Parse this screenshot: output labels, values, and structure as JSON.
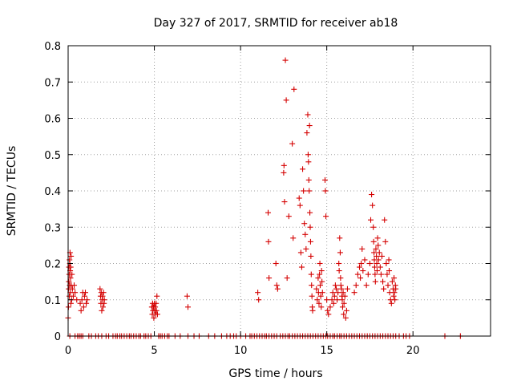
{
  "chart_data": {
    "type": "scatter",
    "title": "Day 327 of 2017, SRMTID for receiver ab18",
    "xlabel": "GPS time / hours",
    "ylabel": "SRMTID / TECUs",
    "xlim": [
      0,
      24.5
    ],
    "ylim": [
      0,
      0.8
    ],
    "xticks": [
      0,
      5,
      10,
      15,
      20
    ],
    "yticks": [
      0,
      0.1,
      0.2,
      0.3,
      0.4,
      0.5,
      0.6,
      0.7,
      0.8
    ],
    "grid": true,
    "marker": "+",
    "color": "#d40000",
    "series": [
      {
        "name": "SRMTID",
        "points": [
          [
            0.0,
            0.05
          ],
          [
            0.02,
            0.08
          ],
          [
            0.03,
            0.13
          ],
          [
            0.04,
            0.15
          ],
          [
            0.05,
            0.19
          ],
          [
            0.06,
            0.17
          ],
          [
            0.07,
            0.11
          ],
          [
            0.08,
            0.21
          ],
          [
            0.09,
            0.14
          ],
          [
            0.1,
            0.2
          ],
          [
            0.11,
            0.23
          ],
          [
            0.12,
            0.18
          ],
          [
            0.13,
            0.12
          ],
          [
            0.14,
            0.16
          ],
          [
            0.15,
            0.19
          ],
          [
            0.16,
            0.09
          ],
          [
            0.17,
            0.22
          ],
          [
            0.18,
            0.14
          ],
          [
            0.2,
            0.1
          ],
          [
            0.22,
            0.17
          ],
          [
            0.25,
            0.13
          ],
          [
            0.3,
            0.11
          ],
          [
            0.35,
            0.14
          ],
          [
            0.4,
            0.12
          ],
          [
            0.5,
            0.1
          ],
          [
            0.7,
            0.09
          ],
          [
            0.75,
            0.07
          ],
          [
            0.8,
            0.1
          ],
          [
            0.85,
            0.12
          ],
          [
            0.9,
            0.08
          ],
          [
            0.95,
            0.11
          ],
          [
            1.0,
            0.12
          ],
          [
            1.05,
            0.09
          ],
          [
            1.1,
            0.1
          ],
          [
            1.85,
            0.13
          ],
          [
            1.88,
            0.11
          ],
          [
            1.9,
            0.09
          ],
          [
            1.92,
            0.12
          ],
          [
            1.95,
            0.07
          ],
          [
            1.97,
            0.1
          ],
          [
            2.0,
            0.11
          ],
          [
            2.02,
            0.08
          ],
          [
            2.05,
            0.12
          ],
          [
            2.08,
            0.09
          ],
          [
            2.1,
            0.1
          ],
          [
            4.85,
            0.08
          ],
          [
            4.88,
            0.06
          ],
          [
            4.9,
            0.09
          ],
          [
            4.92,
            0.07
          ],
          [
            4.95,
            0.08
          ],
          [
            4.97,
            0.05
          ],
          [
            5.0,
            0.09
          ],
          [
            5.02,
            0.07
          ],
          [
            5.05,
            0.08
          ],
          [
            5.07,
            0.06
          ],
          [
            5.1,
            0.09
          ],
          [
            5.12,
            0.07
          ],
          [
            5.15,
            0.11
          ],
          [
            5.18,
            0.06
          ],
          [
            6.9,
            0.11
          ],
          [
            6.95,
            0.08
          ],
          [
            11.0,
            0.12
          ],
          [
            11.05,
            0.1
          ],
          [
            11.6,
            0.34
          ],
          [
            11.62,
            0.26
          ],
          [
            11.65,
            0.16
          ],
          [
            12.05,
            0.2
          ],
          [
            12.1,
            0.14
          ],
          [
            12.15,
            0.13
          ],
          [
            12.5,
            0.45
          ],
          [
            12.52,
            0.47
          ],
          [
            12.55,
            0.37
          ],
          [
            12.6,
            0.76
          ],
          [
            12.65,
            0.65
          ],
          [
            12.7,
            0.16
          ],
          [
            12.8,
            0.33
          ],
          [
            13.0,
            0.53
          ],
          [
            13.05,
            0.27
          ],
          [
            13.1,
            0.68
          ],
          [
            13.4,
            0.38
          ],
          [
            13.45,
            0.36
          ],
          [
            13.5,
            0.23
          ],
          [
            13.55,
            0.19
          ],
          [
            13.6,
            0.46
          ],
          [
            13.65,
            0.4
          ],
          [
            13.7,
            0.31
          ],
          [
            13.75,
            0.28
          ],
          [
            13.8,
            0.24
          ],
          [
            13.85,
            0.56
          ],
          [
            13.9,
            0.61
          ],
          [
            13.92,
            0.5
          ],
          [
            13.94,
            0.48
          ],
          [
            13.96,
            0.43
          ],
          [
            13.98,
            0.4
          ],
          [
            14.0,
            0.58
          ],
          [
            14.02,
            0.34
          ],
          [
            14.04,
            0.3
          ],
          [
            14.06,
            0.26
          ],
          [
            14.08,
            0.22
          ],
          [
            14.1,
            0.17
          ],
          [
            14.12,
            0.14
          ],
          [
            14.14,
            0.11
          ],
          [
            14.16,
            0.08
          ],
          [
            14.18,
            0.07
          ],
          [
            14.4,
            0.13
          ],
          [
            14.45,
            0.1
          ],
          [
            14.5,
            0.16
          ],
          [
            14.52,
            0.12
          ],
          [
            14.55,
            0.09
          ],
          [
            14.58,
            0.17
          ],
          [
            14.6,
            0.2
          ],
          [
            14.62,
            0.14
          ],
          [
            14.65,
            0.11
          ],
          [
            14.68,
            0.08
          ],
          [
            14.7,
            0.18
          ],
          [
            14.72,
            0.15
          ],
          [
            14.75,
            0.12
          ],
          [
            14.9,
            0.43
          ],
          [
            14.92,
            0.4
          ],
          [
            14.95,
            0.33
          ],
          [
            15.0,
            0.1
          ],
          [
            15.05,
            0.07
          ],
          [
            15.1,
            0.06
          ],
          [
            15.2,
            0.08
          ],
          [
            15.3,
            0.1
          ],
          [
            15.35,
            0.12
          ],
          [
            15.4,
            0.09
          ],
          [
            15.45,
            0.11
          ],
          [
            15.5,
            0.14
          ],
          [
            15.55,
            0.13
          ],
          [
            15.6,
            0.1
          ],
          [
            15.65,
            0.12
          ],
          [
            15.7,
            0.2
          ],
          [
            15.72,
            0.18
          ],
          [
            15.75,
            0.27
          ],
          [
            15.78,
            0.23
          ],
          [
            15.8,
            0.16
          ],
          [
            15.82,
            0.14
          ],
          [
            15.85,
            0.13
          ],
          [
            15.88,
            0.11
          ],
          [
            15.9,
            0.1
          ],
          [
            15.92,
            0.08
          ],
          [
            15.95,
            0.12
          ],
          [
            15.98,
            0.06
          ],
          [
            16.0,
            0.09
          ],
          [
            16.05,
            0.11
          ],
          [
            16.1,
            0.05
          ],
          [
            16.15,
            0.07
          ],
          [
            16.2,
            0.13
          ],
          [
            16.6,
            0.12
          ],
          [
            16.7,
            0.14
          ],
          [
            16.8,
            0.17
          ],
          [
            16.9,
            0.19
          ],
          [
            16.95,
            0.16
          ],
          [
            17.0,
            0.2
          ],
          [
            17.05,
            0.24
          ],
          [
            17.1,
            0.18
          ],
          [
            17.2,
            0.21
          ],
          [
            17.3,
            0.14
          ],
          [
            17.4,
            0.17
          ],
          [
            17.5,
            0.2
          ],
          [
            17.55,
            0.32
          ],
          [
            17.6,
            0.39
          ],
          [
            17.65,
            0.36
          ],
          [
            17.7,
            0.3
          ],
          [
            17.72,
            0.26
          ],
          [
            17.74,
            0.23
          ],
          [
            17.76,
            0.21
          ],
          [
            17.78,
            0.19
          ],
          [
            17.8,
            0.17
          ],
          [
            17.82,
            0.15
          ],
          [
            17.85,
            0.24
          ],
          [
            17.88,
            0.22
          ],
          [
            17.9,
            0.2
          ],
          [
            17.92,
            0.18
          ],
          [
            17.95,
            0.27
          ],
          [
            17.98,
            0.25
          ],
          [
            18.0,
            0.21
          ],
          [
            18.05,
            0.23
          ],
          [
            18.1,
            0.19
          ],
          [
            18.15,
            0.17
          ],
          [
            18.2,
            0.22
          ],
          [
            18.25,
            0.15
          ],
          [
            18.3,
            0.13
          ],
          [
            18.35,
            0.32
          ],
          [
            18.4,
            0.26
          ],
          [
            18.45,
            0.2
          ],
          [
            18.5,
            0.17
          ],
          [
            18.55,
            0.14
          ],
          [
            18.6,
            0.21
          ],
          [
            18.62,
            0.18
          ],
          [
            18.65,
            0.12
          ],
          [
            18.7,
            0.1
          ],
          [
            18.75,
            0.09
          ],
          [
            18.8,
            0.15
          ],
          [
            18.85,
            0.13
          ],
          [
            18.88,
            0.11
          ],
          [
            18.9,
            0.16
          ],
          [
            18.92,
            0.12
          ],
          [
            18.95,
            0.1
          ],
          [
            18.98,
            0.14
          ],
          [
            19.0,
            0.13
          ]
        ],
        "zero_x": [
          0.1,
          0.4,
          0.55,
          0.65,
          0.75,
          0.85,
          1.2,
          1.35,
          1.6,
          1.75,
          1.95,
          2.2,
          2.35,
          2.6,
          2.75,
          2.85,
          3.0,
          3.1,
          3.25,
          3.4,
          3.55,
          3.65,
          3.8,
          3.95,
          4.1,
          4.2,
          4.4,
          4.5,
          4.65,
          4.8,
          5.25,
          5.35,
          5.45,
          5.6,
          5.75,
          5.85,
          6.2,
          6.5,
          6.95,
          7.3,
          7.6,
          8.15,
          8.5,
          8.9,
          9.2,
          9.4,
          9.6,
          9.75,
          10.0,
          10.3,
          10.55,
          10.65,
          10.8,
          10.95,
          11.1,
          11.25,
          11.4,
          11.5,
          11.65,
          11.8,
          11.95,
          12.1,
          12.3,
          12.45,
          12.6,
          12.75,
          12.85,
          13.0,
          13.15,
          13.3,
          13.45,
          13.6,
          13.75,
          13.9,
          14.05,
          14.2,
          14.35,
          14.5,
          14.65,
          14.8,
          14.95,
          15.05,
          15.2,
          15.35,
          15.45,
          15.6,
          15.75,
          15.85,
          16.0,
          16.15,
          16.3,
          16.45,
          16.6,
          16.75,
          16.9,
          17.05,
          17.2,
          17.35,
          17.5,
          17.65,
          17.8,
          17.95,
          18.1,
          18.25,
          18.4,
          18.55,
          18.7,
          18.85,
          19.0,
          19.2,
          19.45,
          19.6,
          19.8,
          21.85,
          22.75
        ]
      }
    ]
  }
}
